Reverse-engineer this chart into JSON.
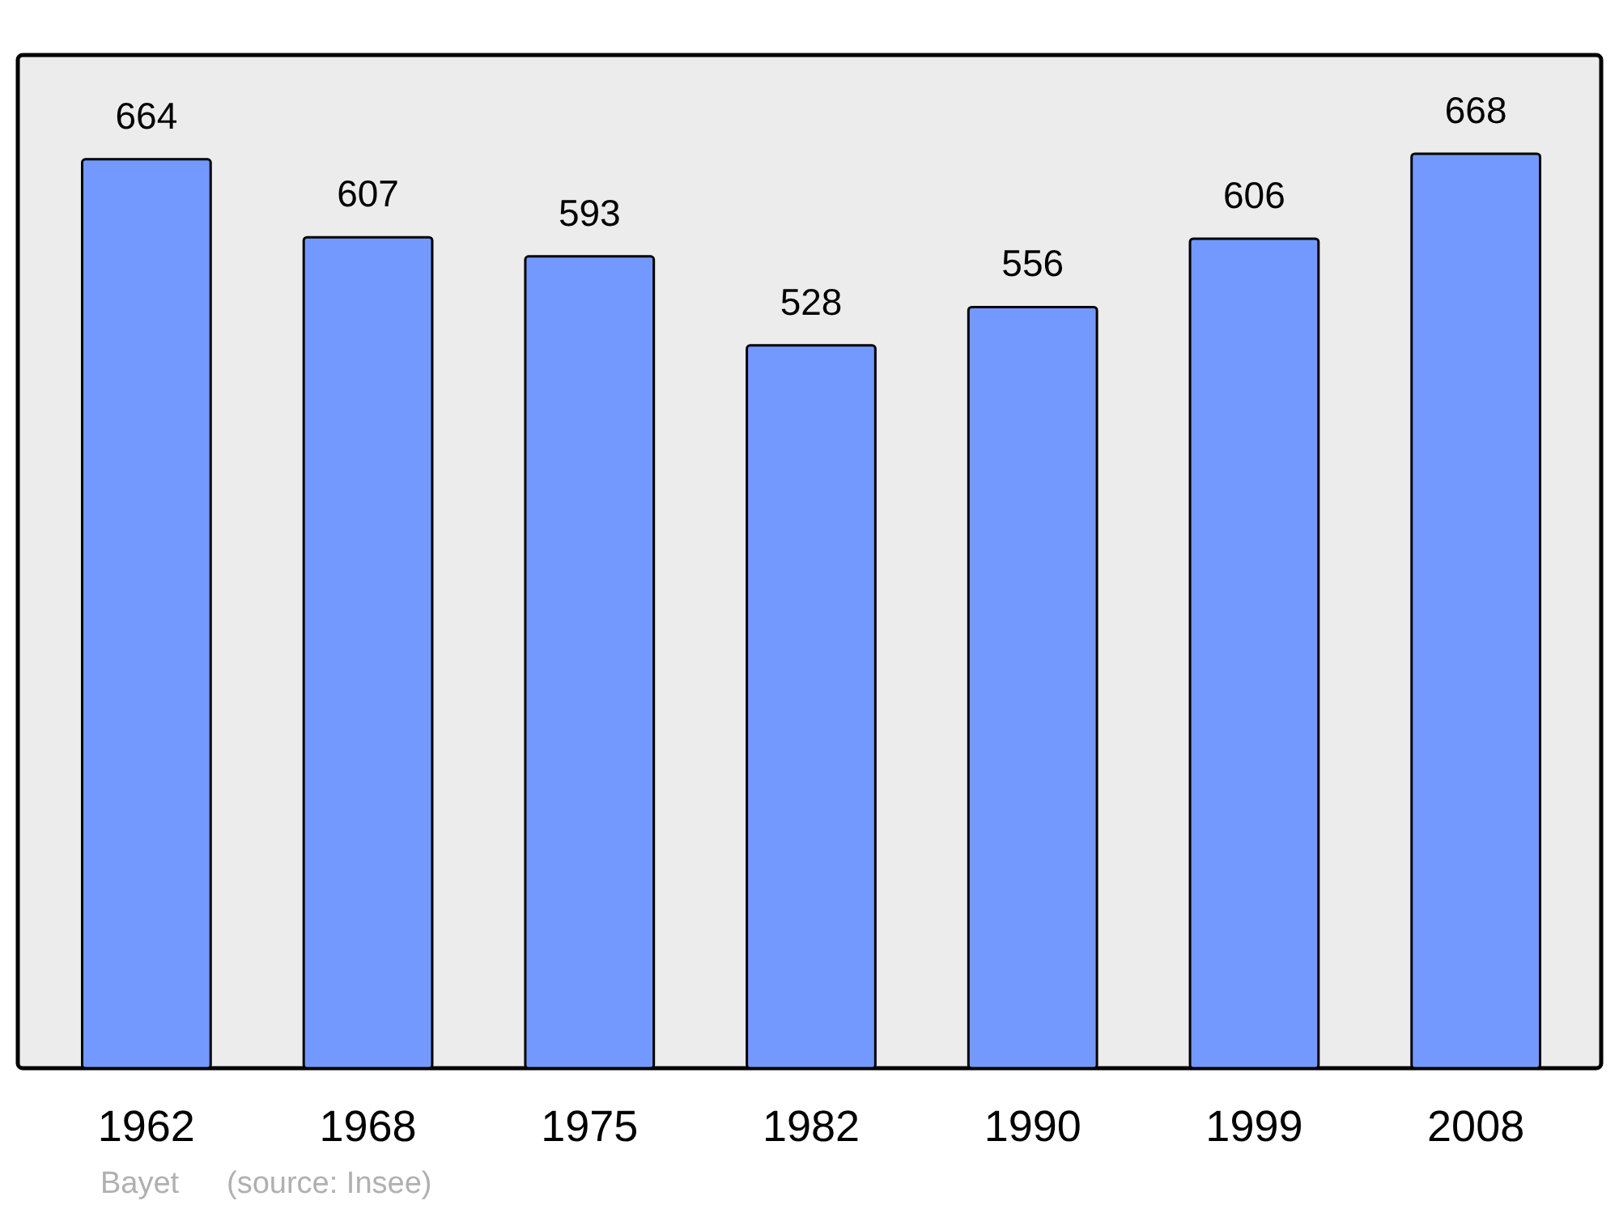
{
  "chart_data": {
    "type": "bar",
    "categories": [
      "1962",
      "1968",
      "1975",
      "1982",
      "1990",
      "1999",
      "2008"
    ],
    "values": [
      664,
      607,
      593,
      528,
      556,
      606,
      668
    ],
    "color": "#7399ff",
    "data_labels": true,
    "annotations": [
      "Bayet",
      "(source: Insee)"
    ]
  }
}
